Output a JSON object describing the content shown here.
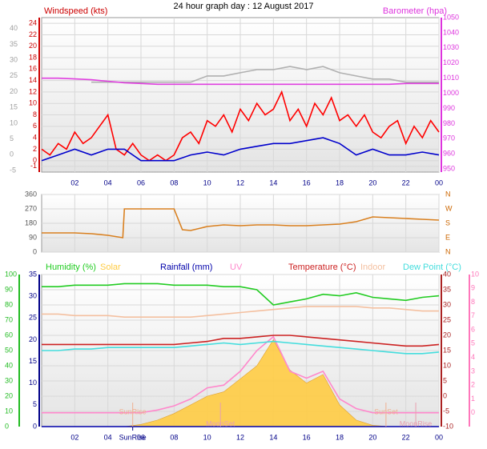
{
  "title": "24 hour graph day : 12 August 2017",
  "chart_data": [
    {
      "type": "line",
      "xlim": [
        0,
        24
      ],
      "x": [
        0,
        1,
        2,
        3,
        4,
        5,
        6,
        7,
        8,
        9,
        10,
        11,
        12,
        13,
        14,
        15,
        16,
        17,
        18,
        19,
        20,
        21,
        22,
        23,
        24
      ],
      "xticks": [
        {
          "value": 2,
          "label": "02"
        },
        {
          "value": 4,
          "label": "04"
        },
        {
          "value": 6,
          "label": "06"
        },
        {
          "value": 8,
          "label": "08"
        },
        10,
        12,
        14,
        16,
        18,
        20,
        22,
        {
          "value": 24,
          "label": "00"
        }
      ],
      "axes": [
        {
          "ylim": [
            -5.5,
            43.5
          ],
          "yticks": [
            -5,
            0,
            5,
            10,
            15,
            20,
            25,
            30,
            35,
            40
          ],
          "color": "#a0a0a0"
        },
        {
          "label": "Windspeed (kts)",
          "ylim": [
            -2,
            25
          ],
          "yticks": [
            -1,
            0,
            2,
            4,
            6,
            8,
            10,
            12,
            14,
            16,
            18,
            20,
            22,
            24
          ],
          "color": "#cc0000",
          "grid": true
        },
        {
          "label": "Barometer (hpa)",
          "ylim": [
            948,
            1050
          ],
          "yticks": [
            950,
            960,
            970,
            980,
            990,
            1000,
            1010,
            1020,
            1030,
            1040,
            1050
          ],
          "color": "#dd33dd"
        }
      ],
      "series": [
        {
          "axis": 0,
          "color": "#b0b0b0",
          "values": [
            null,
            null,
            null,
            23,
            23,
            23,
            23,
            23,
            23,
            23,
            25,
            25,
            26,
            27,
            27,
            28,
            27,
            28,
            26,
            25,
            24,
            24,
            23,
            23,
            23
          ]
        },
        {
          "axis": 1,
          "color": "#ff0000",
          "x": [
            0,
            0.5,
            1,
            1.5,
            2,
            2.5,
            3,
            3.5,
            4,
            4.5,
            5,
            5.5,
            6,
            6.5,
            7,
            7.5,
            8,
            8.5,
            9,
            9.5,
            10,
            10.5,
            11,
            11.5,
            12,
            12.5,
            13,
            13.5,
            14,
            14.5,
            15,
            15.5,
            16,
            16.5,
            17,
            17.5,
            18,
            18.5,
            19,
            19.5,
            20,
            20.5,
            21,
            21.5,
            22,
            22.5,
            23,
            23.5,
            24
          ],
          "values": [
            2,
            1,
            3,
            2,
            5,
            3,
            4,
            6,
            8,
            2,
            1,
            3,
            1,
            0,
            1,
            0,
            1,
            4,
            5,
            3,
            7,
            6,
            8,
            5,
            9,
            7,
            10,
            8,
            9,
            12,
            7,
            9,
            6,
            10,
            8,
            11,
            7,
            8,
            6,
            8,
            5,
            4,
            6,
            7,
            3,
            6,
            4,
            7,
            5
          ]
        },
        {
          "axis": 1,
          "color": "#0000cc",
          "values": [
            0,
            1,
            2,
            1,
            2,
            2,
            0,
            0,
            0,
            1,
            1.5,
            1,
            2,
            2.5,
            3,
            3,
            3.5,
            4,
            3,
            1,
            2,
            1,
            1,
            1.5,
            1
          ]
        },
        {
          "axis": 2,
          "color": "#e040e0",
          "values": [
            1010,
            1010,
            1009.5,
            1009,
            1008,
            1007,
            1006.5,
            1006,
            1006,
            1006,
            1006,
            1006,
            1006,
            1006,
            1006,
            1006,
            1006,
            1006,
            1006,
            1006,
            1006,
            1006,
            1006.5,
            1006.5,
            1006.5
          ]
        }
      ]
    },
    {
      "type": "line",
      "xlim": [
        0,
        24
      ],
      "x": [
        0,
        1,
        2,
        3,
        4,
        4.9,
        5,
        6,
        7,
        8,
        8.5,
        9,
        10,
        11,
        12,
        13,
        14,
        15,
        16,
        17,
        18,
        19,
        20,
        21,
        22,
        23,
        24
      ],
      "xticks": [
        2,
        4,
        6,
        8,
        10,
        12,
        14,
        16,
        18,
        20,
        22,
        24
      ],
      "axes": [
        {
          "ylim": [
            0,
            360
          ],
          "yticks": [
            0,
            90,
            180,
            270,
            360
          ],
          "color": "#555555",
          "grid": true
        },
        {
          "ylim": [
            0,
            360
          ],
          "yticks": [
            {
              "value": 0,
              "label": "N"
            },
            {
              "value": 90,
              "label": "E"
            },
            {
              "value": 180,
              "label": "S"
            },
            {
              "value": 270,
              "label": "W"
            },
            {
              "value": 360,
              "label": "N"
            }
          ],
          "color": "#cc6600"
        }
      ],
      "series": [
        {
          "axis": 0,
          "color": "#d98020",
          "values": [
            120,
            120,
            120,
            115,
            105,
            90,
            270,
            270,
            270,
            270,
            140,
            135,
            160,
            170,
            165,
            170,
            170,
            165,
            165,
            170,
            175,
            190,
            220,
            215,
            210,
            205,
            200
          ]
        }
      ]
    },
    {
      "type": "line",
      "xlim": [
        0,
        24
      ],
      "x": [
        0,
        1,
        2,
        3,
        4,
        5,
        6,
        7,
        8,
        9,
        10,
        11,
        12,
        13,
        14,
        15,
        16,
        17,
        18,
        19,
        20,
        21,
        22,
        23,
        24
      ],
      "xticks": [
        {
          "value": 2,
          "label": "02"
        },
        {
          "value": 4,
          "label": "04"
        },
        {
          "value": 6,
          "label": "06"
        },
        {
          "value": 8,
          "label": "08"
        },
        10,
        12,
        14,
        16,
        18,
        20,
        22,
        {
          "value": 24,
          "label": "00"
        }
      ],
      "axes": [
        {
          "ylim": [
            0,
            100
          ],
          "yticks": [
            0,
            10,
            20,
            30,
            40,
            50,
            60,
            70,
            80,
            90,
            100
          ],
          "color": "#22bb22",
          "grid": true
        },
        {
          "ylim": [
            0,
            35
          ],
          "yticks": [
            0,
            5,
            10,
            15,
            20,
            25,
            30,
            35
          ],
          "color": "#000088"
        },
        {
          "ylim": [
            -10,
            40
          ],
          "yticks": [
            -10,
            -5,
            0,
            5,
            10,
            15,
            20,
            25,
            30,
            35,
            40
          ],
          "color": "#aa2222"
        },
        {
          "ylim": [
            -1,
            10
          ],
          "yticks": [
            0,
            1,
            2,
            3,
            4,
            5,
            6,
            7,
            8,
            9,
            10
          ],
          "color": "#ff77bb"
        }
      ],
      "series": [
        {
          "name": "Humidity (%)",
          "axis": 0,
          "color": "#22cc22",
          "values": [
            92,
            92,
            93,
            93,
            93,
            94,
            94,
            94,
            93,
            93,
            93,
            92,
            92,
            90,
            80,
            82,
            84,
            87,
            86,
            88,
            85,
            84,
            83,
            85,
            86
          ]
        },
        {
          "name": "Solar",
          "axis": 1,
          "color": "#ffcc44",
          "style": "area",
          "values": [
            0,
            0,
            0,
            0,
            0,
            0,
            0.5,
            1.5,
            3,
            5,
            7,
            8,
            11,
            14,
            20,
            13,
            10,
            12,
            5,
            1.5,
            0.3,
            0,
            0,
            0,
            0
          ]
        },
        {
          "name": "Rainfall (mm)",
          "axis": 1,
          "color": "#0000aa",
          "values": [
            0,
            0,
            0,
            0,
            0,
            0,
            0,
            0,
            0,
            0,
            0,
            0,
            0,
            0,
            0,
            0,
            0,
            0,
            0,
            0,
            0,
            0,
            0,
            0,
            0
          ]
        },
        {
          "name": "UV",
          "axis": 3,
          "color": "#ff88cc",
          "values": [
            0,
            0,
            0,
            0,
            0,
            0,
            0,
            0.2,
            0.5,
            1,
            1.8,
            2,
            3,
            4.5,
            5.5,
            3,
            2.5,
            3,
            1,
            0.3,
            0,
            0,
            0,
            0,
            0
          ]
        },
        {
          "name": "Temperature (°C)",
          "axis": 2,
          "color": "#cc2222",
          "values": [
            17,
            17,
            17,
            17,
            17,
            17,
            17,
            17,
            17,
            17.5,
            18,
            19,
            19,
            19.5,
            20,
            20,
            19.5,
            19,
            18.5,
            18,
            17.5,
            17,
            16.5,
            16.5,
            17
          ]
        },
        {
          "name": "Indoor",
          "axis": 2,
          "color": "#f4c0a0",
          "values": [
            27,
            27,
            26.5,
            26.5,
            26.5,
            26,
            26,
            26,
            26,
            26,
            26.5,
            27,
            27.5,
            28,
            28.5,
            29,
            29.5,
            29.5,
            29.5,
            29.5,
            29,
            29,
            28.5,
            28,
            28
          ]
        },
        {
          "name": "Dew Point (°C)",
          "axis": 2,
          "color": "#44dddd",
          "values": [
            15,
            15,
            15.5,
            15.5,
            16,
            16,
            16,
            16,
            16,
            16.5,
            17,
            17.5,
            17,
            17.5,
            18,
            17.5,
            17,
            16.5,
            16,
            15.5,
            15,
            14.5,
            14,
            14,
            14.5
          ]
        }
      ],
      "annotations": [
        {
          "text": "SunRise",
          "x": 5.5,
          "color": "#f0b090"
        },
        {
          "text": "SunSet",
          "x": 20.8,
          "color": "#f0b090"
        },
        {
          "text": "MoonSet",
          "x": 10.8,
          "color": "#e8a0b0"
        },
        {
          "text": "MoonRise",
          "x": 22.6,
          "color": "#e8a0b0"
        },
        {
          "text": "SunRise",
          "x": 5.5,
          "color": "#000088"
        }
      ]
    }
  ]
}
